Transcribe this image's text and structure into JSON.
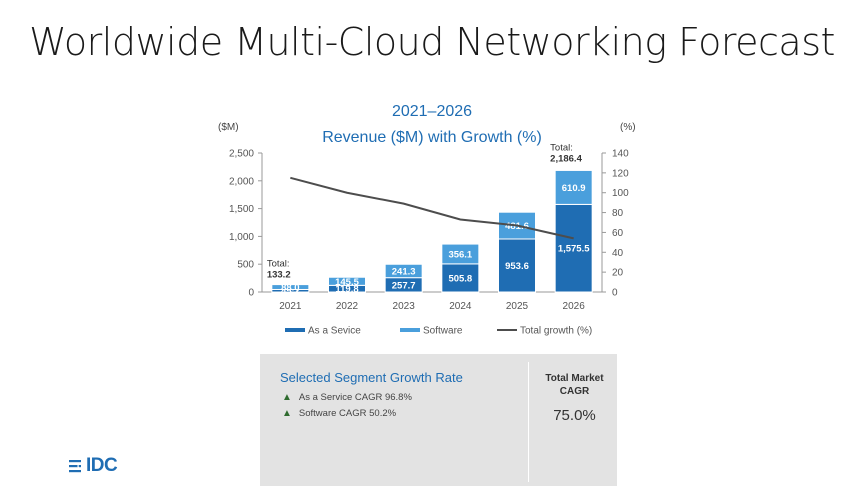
{
  "slide": {
    "title": "Worldwide Multi-Cloud Networking Forecast",
    "logo_text": "IDC"
  },
  "chart_data": {
    "type": "bar",
    "title": "2021–2026",
    "subtitle": "Revenue ($M) with Growth (%)",
    "y_left_unit": "($M)",
    "y_right_unit": "(%)",
    "categories": [
      "2021",
      "2022",
      "2023",
      "2024",
      "2025",
      "2026"
    ],
    "ylim_left": [
      0,
      2500
    ],
    "yticks_left": [
      "0",
      "500",
      "1,000",
      "1,500",
      "2,000",
      "2,500"
    ],
    "ylim_right": [
      0,
      140
    ],
    "yticks_right": [
      "0",
      "20",
      "40",
      "60",
      "80",
      "100",
      "120",
      "140"
    ],
    "stacked": true,
    "series": [
      {
        "name": "As a Sevice",
        "kind": "bar",
        "color": "#1f6db3",
        "values": [
          45.2,
          119.8,
          257.7,
          505.8,
          953.6,
          1575.5
        ],
        "labels": [
          "45.2",
          "119.8",
          "257.7",
          "505.8",
          "953.6",
          "1,575.5"
        ]
      },
      {
        "name": "Software",
        "kind": "bar",
        "color": "#4a9fdc",
        "values": [
          88.0,
          145.5,
          241.3,
          356.1,
          481.6,
          610.9
        ],
        "labels": [
          "88.0",
          "145.5",
          "241.3",
          "356.1",
          "481.6",
          "610.9"
        ]
      },
      {
        "name": "Total growth (%)",
        "kind": "line",
        "color": "#4d4d4d",
        "axis": "right",
        "values": [
          115,
          100,
          89,
          73,
          67,
          54
        ]
      }
    ],
    "totals": [
      {
        "category": "2021",
        "label": "Total:",
        "value": "133.2"
      },
      {
        "category": "2026",
        "label": "Total:",
        "value": "2,186.4"
      }
    ],
    "legend_position": "bottom"
  },
  "panel": {
    "heading": "Selected Segment Growth Rate",
    "rows": [
      {
        "marker": "▲",
        "text": "As a Service CAGR 96.8%"
      },
      {
        "marker": "▲",
        "text": "Software CAGR 50.2%"
      }
    ],
    "market_label_line1": "Total Market",
    "market_label_line2": "CAGR",
    "market_value": "75.0%"
  },
  "colors": {
    "as_a_service": "#1f6db3",
    "software": "#4a9fdc",
    "growth_line": "#4d4d4d",
    "title_blue": "#1f6db3",
    "panel_bg": "#e3e3e3"
  }
}
